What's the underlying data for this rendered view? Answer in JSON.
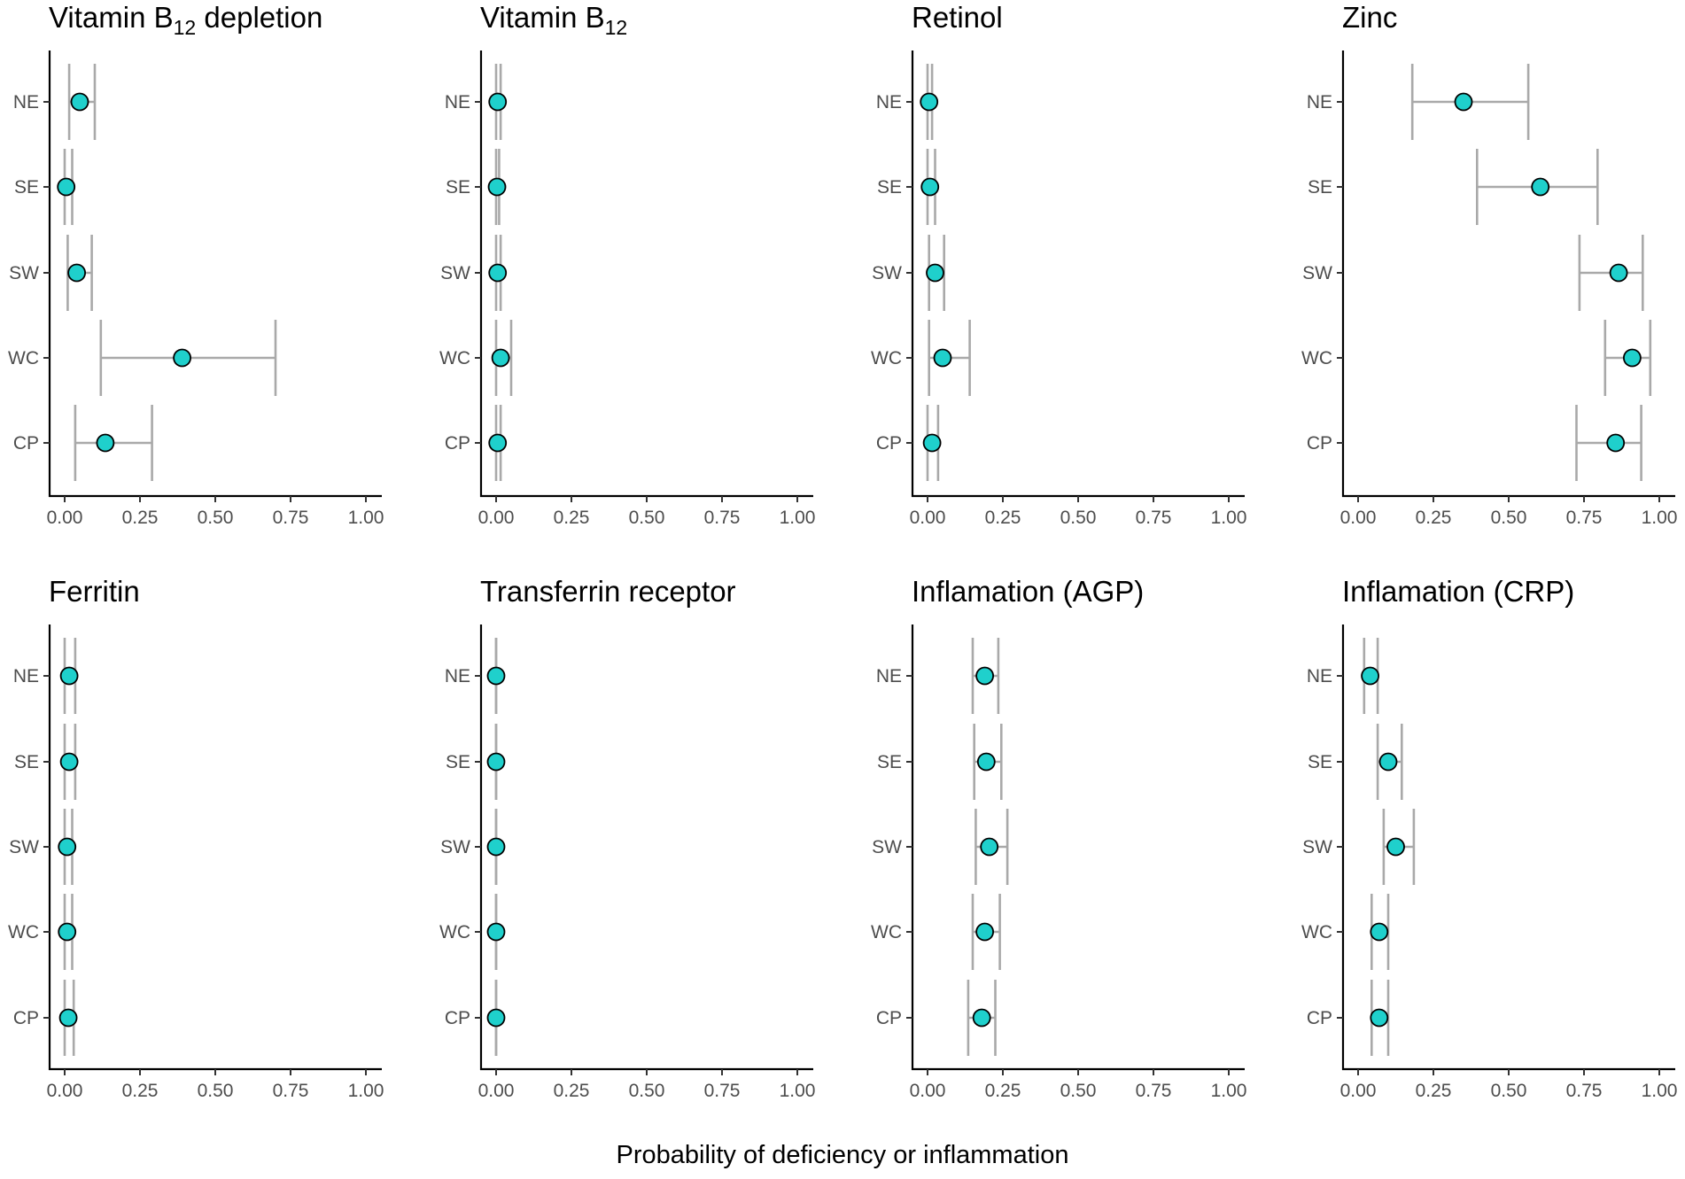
{
  "x_axis_label": "Probability of deficiency or inflammation",
  "colors": {
    "point_fill": "#1fd0cc",
    "point_stroke": "#000000",
    "error_bar": "#a9a9a9"
  },
  "chart_data": [
    {
      "type": "scatter",
      "title": "Vitamin B",
      "title_sub": "12",
      "title_after": " depletion",
      "categories": [
        "NE",
        "SE",
        "SW",
        "WC",
        "CP"
      ],
      "xlim": [
        0,
        1
      ],
      "xticks": [
        "0.00",
        "0.25",
        "0.50",
        "0.75",
        "1.00"
      ],
      "estimate": [
        0.05,
        0.005,
        0.04,
        0.39,
        0.135
      ],
      "lower": [
        0.015,
        0.0,
        0.01,
        0.12,
        0.035
      ],
      "upper": [
        0.1,
        0.025,
        0.09,
        0.7,
        0.29
      ]
    },
    {
      "type": "scatter",
      "title": "Vitamin B",
      "title_sub": "12",
      "title_after": "",
      "categories": [
        "NE",
        "SE",
        "SW",
        "WC",
        "CP"
      ],
      "xlim": [
        0,
        1
      ],
      "xticks": [
        "0.00",
        "0.25",
        "0.50",
        "0.75",
        "1.00"
      ],
      "estimate": [
        0.005,
        0.003,
        0.005,
        0.015,
        0.005
      ],
      "lower": [
        0.0,
        0.0,
        0.0,
        0.0,
        0.0
      ],
      "upper": [
        0.015,
        0.01,
        0.015,
        0.05,
        0.015
      ]
    },
    {
      "type": "scatter",
      "title": "Retinol",
      "title_sub": "",
      "title_after": "",
      "categories": [
        "NE",
        "SE",
        "SW",
        "WC",
        "CP"
      ],
      "xlim": [
        0,
        1
      ],
      "xticks": [
        "0.00",
        "0.25",
        "0.50",
        "0.75",
        "1.00"
      ],
      "estimate": [
        0.005,
        0.008,
        0.025,
        0.05,
        0.015
      ],
      "lower": [
        0.0,
        0.0,
        0.005,
        0.005,
        0.0
      ],
      "upper": [
        0.015,
        0.025,
        0.055,
        0.14,
        0.035
      ]
    },
    {
      "type": "scatter",
      "title": "Zinc",
      "title_sub": "",
      "title_after": "",
      "categories": [
        "NE",
        "SE",
        "SW",
        "WC",
        "CP"
      ],
      "xlim": [
        0,
        1
      ],
      "xticks": [
        "0.00",
        "0.25",
        "0.50",
        "0.75",
        "1.00"
      ],
      "estimate": [
        0.35,
        0.605,
        0.865,
        0.91,
        0.855
      ],
      "lower": [
        0.18,
        0.395,
        0.735,
        0.82,
        0.725
      ],
      "upper": [
        0.565,
        0.795,
        0.945,
        0.97,
        0.94
      ]
    },
    {
      "type": "scatter",
      "title": "Ferritin",
      "title_sub": "",
      "title_after": "",
      "categories": [
        "NE",
        "SE",
        "SW",
        "WC",
        "CP"
      ],
      "xlim": [
        0,
        1
      ],
      "xticks": [
        "0.00",
        "0.25",
        "0.50",
        "0.75",
        "1.00"
      ],
      "estimate": [
        0.015,
        0.015,
        0.008,
        0.008,
        0.012
      ],
      "lower": [
        0.0,
        0.0,
        0.0,
        0.0,
        0.0
      ],
      "upper": [
        0.035,
        0.035,
        0.025,
        0.025,
        0.03
      ]
    },
    {
      "type": "scatter",
      "title": "Transferrin receptor",
      "title_sub": "",
      "title_after": "",
      "categories": [
        "NE",
        "SE",
        "SW",
        "WC",
        "CP"
      ],
      "xlim": [
        0,
        1
      ],
      "xticks": [
        "0.00",
        "0.25",
        "0.50",
        "0.75",
        "1.00"
      ],
      "estimate": [
        0.0,
        0.0,
        0.0,
        0.0,
        0.0
      ],
      "lower": [
        0.0,
        0.0,
        0.0,
        0.0,
        0.0
      ],
      "upper": [
        0.0,
        0.0,
        0.0,
        0.0,
        0.0
      ]
    },
    {
      "type": "scatter",
      "title": "Inflamation (AGP)",
      "title_sub": "",
      "title_after": "",
      "categories": [
        "NE",
        "SE",
        "SW",
        "WC",
        "CP"
      ],
      "xlim": [
        0,
        1
      ],
      "xticks": [
        "0.00",
        "0.25",
        "0.50",
        "0.75",
        "1.00"
      ],
      "estimate": [
        0.19,
        0.195,
        0.205,
        0.19,
        0.18
      ],
      "lower": [
        0.15,
        0.155,
        0.16,
        0.15,
        0.135
      ],
      "upper": [
        0.235,
        0.245,
        0.265,
        0.24,
        0.225
      ]
    },
    {
      "type": "scatter",
      "title": "Inflamation (CRP)",
      "title_sub": "",
      "title_after": "",
      "categories": [
        "NE",
        "SE",
        "SW",
        "WC",
        "CP"
      ],
      "xlim": [
        0,
        1
      ],
      "xticks": [
        "0.00",
        "0.25",
        "0.50",
        "0.75",
        "1.00"
      ],
      "estimate": [
        0.04,
        0.1,
        0.125,
        0.07,
        0.07
      ],
      "lower": [
        0.02,
        0.065,
        0.085,
        0.045,
        0.045
      ],
      "upper": [
        0.065,
        0.145,
        0.185,
        0.1,
        0.1
      ]
    }
  ]
}
